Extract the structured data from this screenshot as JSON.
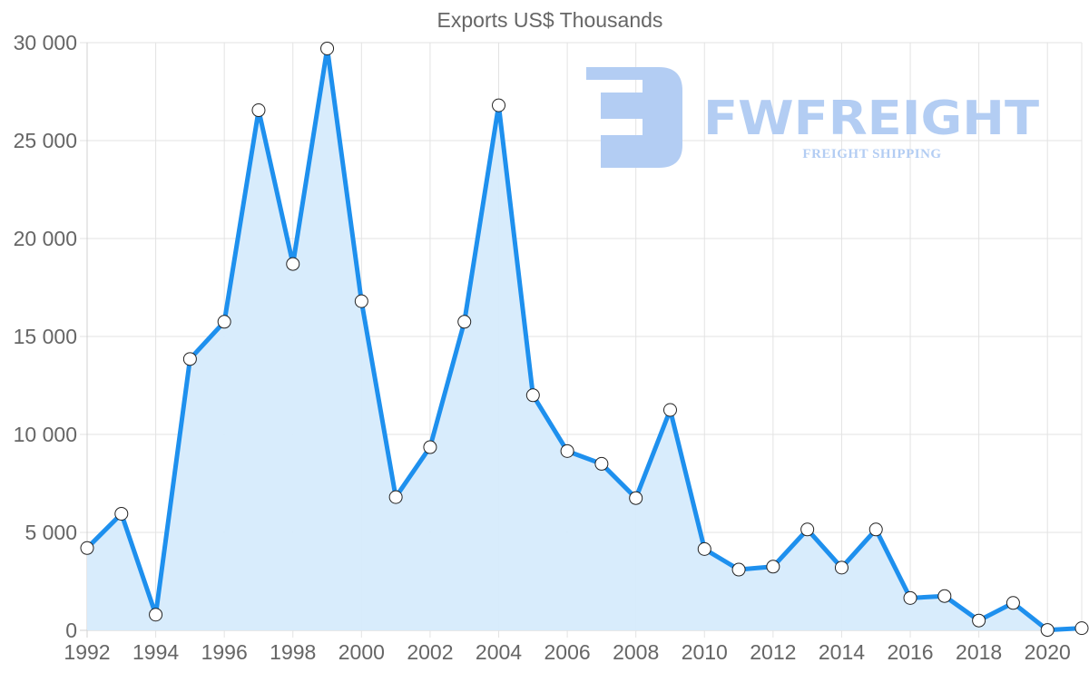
{
  "chart_data": {
    "type": "area",
    "title": "Exports US$ Thousands",
    "xlabel": "",
    "ylabel": "",
    "ylim": [
      0,
      30000
    ],
    "yticks": [
      0,
      5000,
      10000,
      15000,
      20000,
      25000,
      30000
    ],
    "ytick_labels": [
      "0",
      "5 000",
      "10 000",
      "15 000",
      "20 000",
      "25 000",
      "30 000"
    ],
    "xtick_labels": [
      "1992",
      "1994",
      "1996",
      "1998",
      "2000",
      "2002",
      "2004",
      "2006",
      "2008",
      "2010",
      "2012",
      "2014",
      "2016",
      "2018",
      "2020"
    ],
    "grid": true,
    "legend": null,
    "x": [
      1992,
      1993,
      1994,
      1995,
      1996,
      1997,
      1998,
      1999,
      2000,
      2001,
      2002,
      2003,
      2004,
      2005,
      2006,
      2007,
      2008,
      2009,
      2010,
      2011,
      2012,
      2013,
      2014,
      2015,
      2016,
      2017,
      2018,
      2019,
      2020,
      2021
    ],
    "series": [
      {
        "name": "Exports US$ Thousands",
        "values": [
          4200,
          5950,
          800,
          13850,
          15750,
          26550,
          18700,
          29700,
          16800,
          6800,
          9350,
          15750,
          26800,
          12000,
          9150,
          8500,
          6750,
          11250,
          4150,
          3100,
          3250,
          5150,
          3200,
          5150,
          1650,
          1750,
          500,
          1400,
          20,
          110
        ],
        "line_color": "#1e90ee",
        "fill_color": "#d6ebfc",
        "marker_fill": "#ffffff",
        "marker_stroke": "#222222"
      }
    ]
  },
  "watermark": {
    "brand": "FWFREIGHT",
    "tagline": "FREIGHT SHIPPING",
    "color": "#b3cdf3"
  }
}
